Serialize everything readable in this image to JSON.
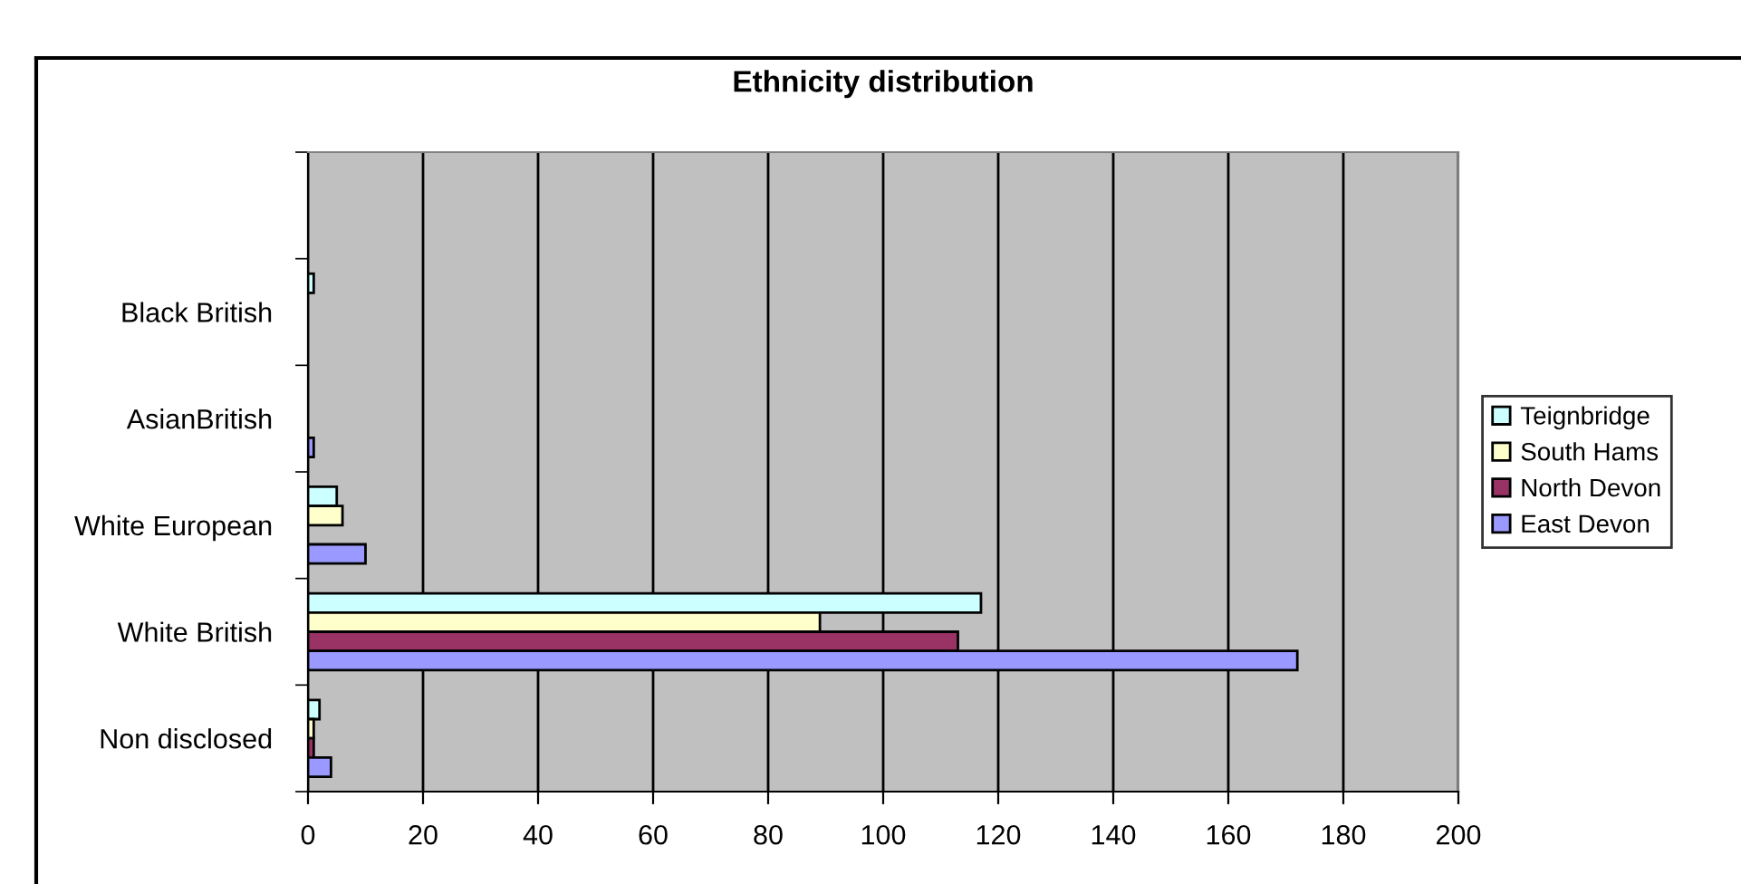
{
  "chart_data": {
    "type": "bar",
    "orientation": "horizontal",
    "title": "Ethnicity distribution",
    "categories": [
      null,
      "Black British",
      "AsianBritish",
      "White European",
      "White British",
      "Non disclosed"
    ],
    "series": [
      {
        "name": "Teignbridge",
        "color": "#ccffff",
        "values": [
          null,
          1,
          null,
          5,
          117,
          2
        ]
      },
      {
        "name": "South Hams",
        "color": "#ffffcc",
        "values": [
          null,
          null,
          null,
          6,
          89,
          1
        ]
      },
      {
        "name": "North Devon",
        "color": "#993366",
        "values": [
          null,
          null,
          null,
          null,
          113,
          1
        ]
      },
      {
        "name": "East Devon",
        "color": "#9999ff",
        "values": [
          null,
          null,
          1,
          10,
          172,
          4
        ]
      }
    ],
    "xlim": [
      0,
      200
    ],
    "xticks": [
      0,
      20,
      40,
      60,
      80,
      100,
      120,
      140,
      160,
      180,
      200
    ],
    "grid": "x",
    "legend": "right"
  }
}
